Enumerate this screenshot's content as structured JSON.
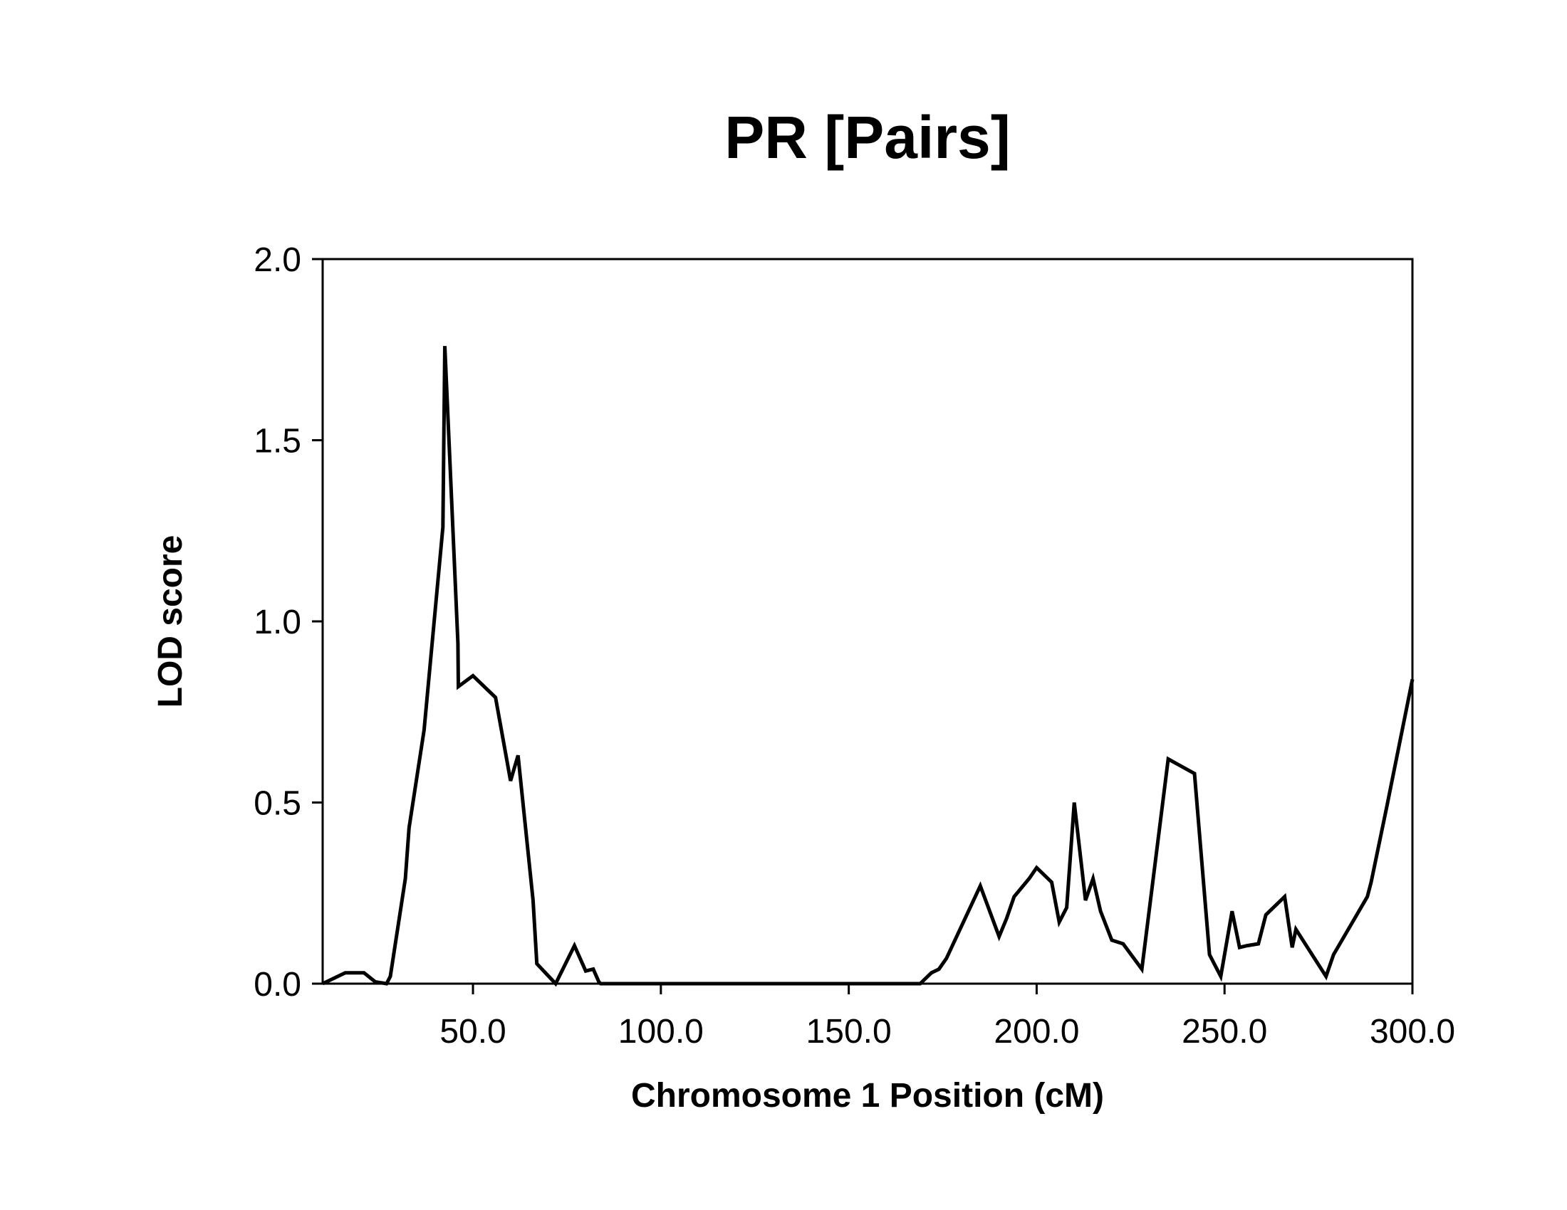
{
  "chart_data": {
    "type": "line",
    "title": "PR [Pairs]",
    "xlabel": "Chromosome 1 Position (cM)",
    "ylabel": "LOD score",
    "xlim": [
      10,
      300
    ],
    "ylim": [
      0,
      2
    ],
    "x_ticks": [
      50,
      100,
      150,
      200,
      250,
      300
    ],
    "x_tick_labels": [
      "50.0",
      "100.0",
      "150.0",
      "200.0",
      "250.0",
      "300.0"
    ],
    "y_ticks": [
      0,
      0.5,
      1,
      1.5,
      2
    ],
    "y_tick_labels": [
      "0.0",
      "0.5",
      "1.0",
      "1.5",
      "2.0"
    ],
    "grid": false,
    "line_color": "#000000",
    "series": [
      {
        "x": [
          10,
          16,
          21,
          24,
          27,
          28,
          32,
          33,
          37,
          42,
          42.5,
          46,
          46.1,
          50,
          56,
          60,
          62,
          66,
          67,
          72,
          77,
          80,
          82,
          83.5,
          84,
          158,
          169,
          172,
          174,
          176,
          185,
          190,
          192,
          194,
          198,
          200,
          204,
          206,
          208,
          210,
          213,
          215,
          217,
          220,
          223,
          228,
          235,
          242,
          246,
          249,
          252,
          254,
          256,
          259,
          261,
          266,
          268,
          269,
          277,
          279,
          288,
          289,
          293,
          300
        ],
        "y": [
          0,
          0.03,
          0.03,
          0.005,
          0,
          0.02,
          0.29,
          0.43,
          0.7,
          1.26,
          1.76,
          0.94,
          0.82,
          0.85,
          0.79,
          0.56,
          0.63,
          0.23,
          0.055,
          0,
          0.105,
          0.035,
          0.04,
          0.005,
          0,
          0,
          0,
          0.03,
          0.04,
          0.07,
          0.27,
          0.13,
          0.18,
          0.24,
          0.29,
          0.32,
          0.28,
          0.17,
          0.21,
          0.5,
          0.23,
          0.29,
          0.2,
          0.12,
          0.11,
          0.04,
          0.62,
          0.58,
          0.08,
          0.02,
          0.2,
          0.1,
          0.105,
          0.11,
          0.19,
          0.24,
          0.1,
          0.15,
          0.02,
          0.08,
          0.24,
          0.28,
          0.48,
          0.84
        ]
      }
    ]
  }
}
